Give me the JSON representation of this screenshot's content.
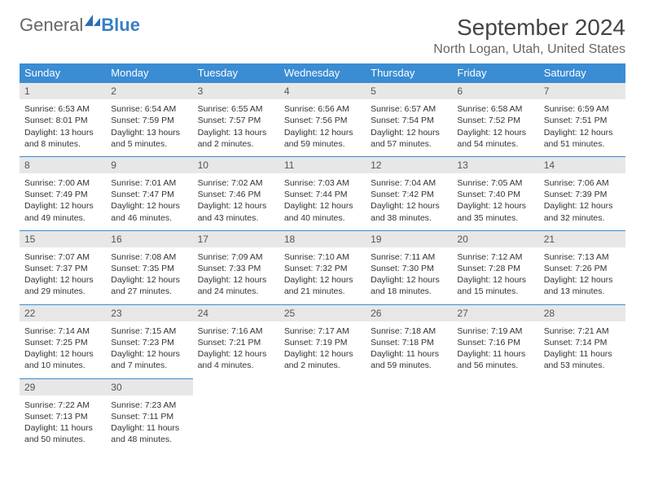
{
  "logo": {
    "part1": "General",
    "part2": "Blue"
  },
  "title": "September 2024",
  "location": "North Logan, Utah, United States",
  "colors": {
    "header_bg": "#3a8cd3",
    "header_text": "#ffffff",
    "daynum_bg": "#e7e7e7",
    "accent_border": "#3a8cd3",
    "logo_blue": "#3a7fc4",
    "text": "#333333",
    "page_bg": "#ffffff"
  },
  "weekdays": [
    "Sunday",
    "Monday",
    "Tuesday",
    "Wednesday",
    "Thursday",
    "Friday",
    "Saturday"
  ],
  "labels": {
    "sunrise": "Sunrise:",
    "sunset": "Sunset:",
    "daylight": "Daylight:"
  },
  "weeks": [
    [
      {
        "n": "1",
        "sr": "6:53 AM",
        "ss": "8:01 PM",
        "d1": "13 hours",
        "d2": "and 8 minutes."
      },
      {
        "n": "2",
        "sr": "6:54 AM",
        "ss": "7:59 PM",
        "d1": "13 hours",
        "d2": "and 5 minutes."
      },
      {
        "n": "3",
        "sr": "6:55 AM",
        "ss": "7:57 PM",
        "d1": "13 hours",
        "d2": "and 2 minutes."
      },
      {
        "n": "4",
        "sr": "6:56 AM",
        "ss": "7:56 PM",
        "d1": "12 hours",
        "d2": "and 59 minutes."
      },
      {
        "n": "5",
        "sr": "6:57 AM",
        "ss": "7:54 PM",
        "d1": "12 hours",
        "d2": "and 57 minutes."
      },
      {
        "n": "6",
        "sr": "6:58 AM",
        "ss": "7:52 PM",
        "d1": "12 hours",
        "d2": "and 54 minutes."
      },
      {
        "n": "7",
        "sr": "6:59 AM",
        "ss": "7:51 PM",
        "d1": "12 hours",
        "d2": "and 51 minutes."
      }
    ],
    [
      {
        "n": "8",
        "sr": "7:00 AM",
        "ss": "7:49 PM",
        "d1": "12 hours",
        "d2": "and 49 minutes."
      },
      {
        "n": "9",
        "sr": "7:01 AM",
        "ss": "7:47 PM",
        "d1": "12 hours",
        "d2": "and 46 minutes."
      },
      {
        "n": "10",
        "sr": "7:02 AM",
        "ss": "7:46 PM",
        "d1": "12 hours",
        "d2": "and 43 minutes."
      },
      {
        "n": "11",
        "sr": "7:03 AM",
        "ss": "7:44 PM",
        "d1": "12 hours",
        "d2": "and 40 minutes."
      },
      {
        "n": "12",
        "sr": "7:04 AM",
        "ss": "7:42 PM",
        "d1": "12 hours",
        "d2": "and 38 minutes."
      },
      {
        "n": "13",
        "sr": "7:05 AM",
        "ss": "7:40 PM",
        "d1": "12 hours",
        "d2": "and 35 minutes."
      },
      {
        "n": "14",
        "sr": "7:06 AM",
        "ss": "7:39 PM",
        "d1": "12 hours",
        "d2": "and 32 minutes."
      }
    ],
    [
      {
        "n": "15",
        "sr": "7:07 AM",
        "ss": "7:37 PM",
        "d1": "12 hours",
        "d2": "and 29 minutes."
      },
      {
        "n": "16",
        "sr": "7:08 AM",
        "ss": "7:35 PM",
        "d1": "12 hours",
        "d2": "and 27 minutes."
      },
      {
        "n": "17",
        "sr": "7:09 AM",
        "ss": "7:33 PM",
        "d1": "12 hours",
        "d2": "and 24 minutes."
      },
      {
        "n": "18",
        "sr": "7:10 AM",
        "ss": "7:32 PM",
        "d1": "12 hours",
        "d2": "and 21 minutes."
      },
      {
        "n": "19",
        "sr": "7:11 AM",
        "ss": "7:30 PM",
        "d1": "12 hours",
        "d2": "and 18 minutes."
      },
      {
        "n": "20",
        "sr": "7:12 AM",
        "ss": "7:28 PM",
        "d1": "12 hours",
        "d2": "and 15 minutes."
      },
      {
        "n": "21",
        "sr": "7:13 AM",
        "ss": "7:26 PM",
        "d1": "12 hours",
        "d2": "and 13 minutes."
      }
    ],
    [
      {
        "n": "22",
        "sr": "7:14 AM",
        "ss": "7:25 PM",
        "d1": "12 hours",
        "d2": "and 10 minutes."
      },
      {
        "n": "23",
        "sr": "7:15 AM",
        "ss": "7:23 PM",
        "d1": "12 hours",
        "d2": "and 7 minutes."
      },
      {
        "n": "24",
        "sr": "7:16 AM",
        "ss": "7:21 PM",
        "d1": "12 hours",
        "d2": "and 4 minutes."
      },
      {
        "n": "25",
        "sr": "7:17 AM",
        "ss": "7:19 PM",
        "d1": "12 hours",
        "d2": "and 2 minutes."
      },
      {
        "n": "26",
        "sr": "7:18 AM",
        "ss": "7:18 PM",
        "d1": "11 hours",
        "d2": "and 59 minutes."
      },
      {
        "n": "27",
        "sr": "7:19 AM",
        "ss": "7:16 PM",
        "d1": "11 hours",
        "d2": "and 56 minutes."
      },
      {
        "n": "28",
        "sr": "7:21 AM",
        "ss": "7:14 PM",
        "d1": "11 hours",
        "d2": "and 53 minutes."
      }
    ],
    [
      {
        "n": "29",
        "sr": "7:22 AM",
        "ss": "7:13 PM",
        "d1": "11 hours",
        "d2": "and 50 minutes."
      },
      {
        "n": "30",
        "sr": "7:23 AM",
        "ss": "7:11 PM",
        "d1": "11 hours",
        "d2": "and 48 minutes."
      },
      null,
      null,
      null,
      null,
      null
    ]
  ]
}
